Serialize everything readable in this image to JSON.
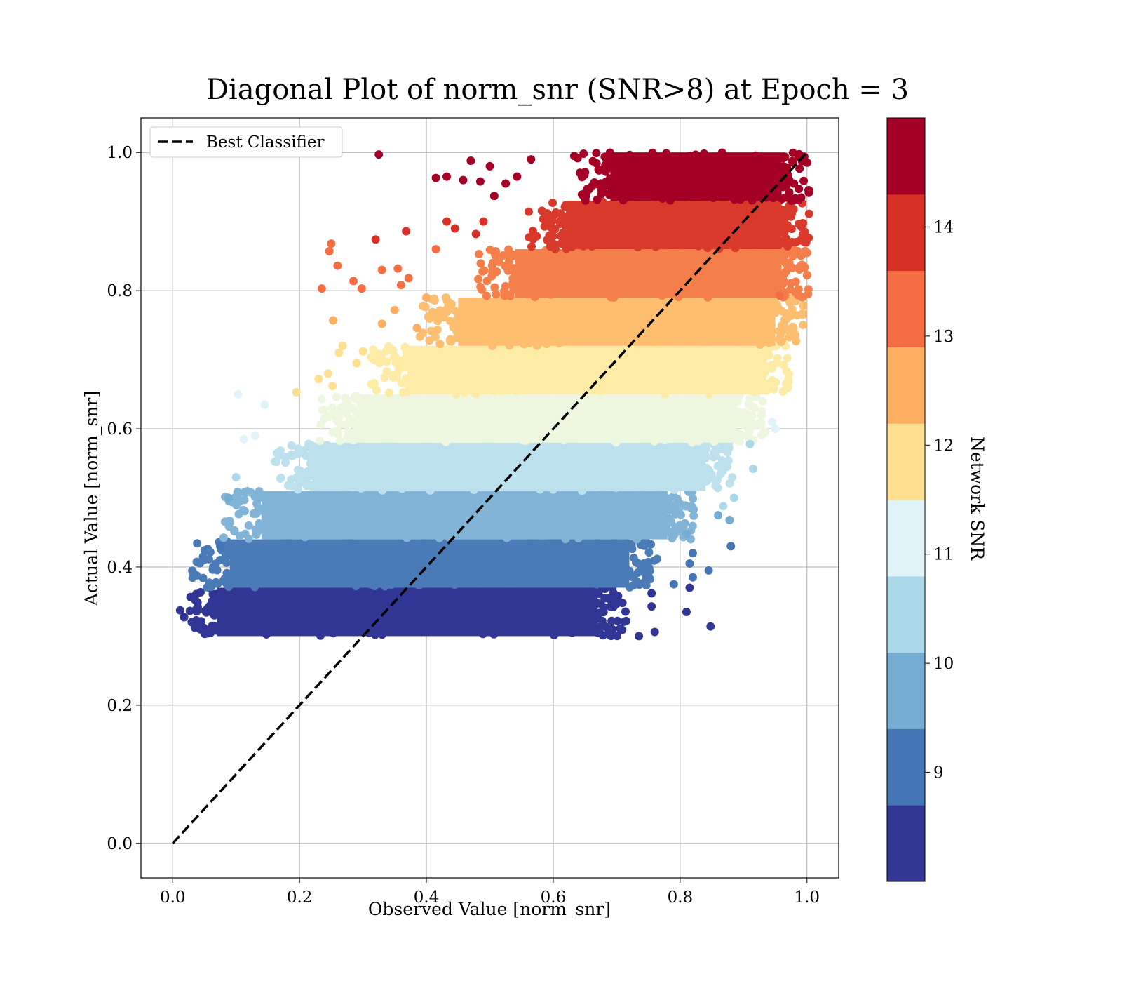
{
  "chart_data": {
    "type": "scatter",
    "title": "Diagonal Plot of norm_snr (SNR>8) at Epoch = 3",
    "xlabel": "Observed Value [norm_snr]",
    "ylabel": "Actual Value [norm_snr]",
    "xlim": [
      -0.05,
      1.05
    ],
    "ylim": [
      -0.05,
      1.05
    ],
    "xticks": [
      "0.0",
      "0.2",
      "0.4",
      "0.6",
      "0.8",
      "1.0"
    ],
    "yticks": [
      "0.0",
      "0.2",
      "0.4",
      "0.6",
      "0.8",
      "1.0"
    ],
    "grid": true,
    "legend": {
      "placement": "upper-left",
      "entries": [
        "Best Classifier"
      ]
    },
    "reference_line": {
      "name": "Best Classifier",
      "style": "dashed",
      "color": "#000000",
      "x": [
        0,
        1
      ],
      "y": [
        0,
        1
      ]
    },
    "colorbar": {
      "label": "Network SNR",
      "range": [
        8,
        15
      ],
      "ticks": [
        "9",
        "10",
        "11",
        "12",
        "13",
        "14"
      ],
      "colors": [
        "#313695",
        "#4575b4",
        "#74add1",
        "#abd9e9",
        "#e0f3f8",
        "#fee090",
        "#fdae61",
        "#f46d43",
        "#d73027",
        "#a50026"
      ]
    },
    "bands": [
      {
        "y": [
          0.3,
          0.37
        ],
        "x_core": [
          0.07,
          0.67
        ],
        "color": "#313695"
      },
      {
        "y": [
          0.37,
          0.44
        ],
        "x_core": [
          0.09,
          0.72
        ],
        "color": "#4a7bb7"
      },
      {
        "y": [
          0.44,
          0.51
        ],
        "x_core": [
          0.14,
          0.78
        ],
        "color": "#81b4d6"
      },
      {
        "y": [
          0.51,
          0.58
        ],
        "x_core": [
          0.22,
          0.84
        ],
        "color": "#bde1ec"
      },
      {
        "y": [
          0.58,
          0.65
        ],
        "x_core": [
          0.29,
          0.89
        ],
        "color": "#edf7df"
      },
      {
        "y": [
          0.65,
          0.72
        ],
        "x_core": [
          0.37,
          0.93
        ],
        "color": "#feeca6"
      },
      {
        "y": [
          0.72,
          0.79
        ],
        "x_core": [
          0.45,
          0.95
        ],
        "color": "#fdbe70"
      },
      {
        "y": [
          0.79,
          0.86
        ],
        "x_core": [
          0.54,
          0.96
        ],
        "color": "#f47f4a"
      },
      {
        "y": [
          0.86,
          0.93
        ],
        "x_core": [
          0.62,
          0.96
        ],
        "color": "#d9392b"
      },
      {
        "y": [
          0.93,
          1.0
        ],
        "x_core": [
          0.69,
          0.96
        ],
        "color": "#a50026"
      }
    ],
    "outliers": [
      {
        "x": 0.325,
        "y": 0.997,
        "c": "#a50026"
      },
      {
        "x": 0.47,
        "y": 0.988,
        "c": "#a50026"
      },
      {
        "x": 0.415,
        "y": 0.963,
        "c": "#a50026"
      },
      {
        "x": 0.432,
        "y": 0.965,
        "c": "#a50026"
      },
      {
        "x": 0.458,
        "y": 0.96,
        "c": "#a50026"
      },
      {
        "x": 0.5,
        "y": 0.98,
        "c": "#a50026"
      },
      {
        "x": 0.485,
        "y": 0.958,
        "c": "#a50026"
      },
      {
        "x": 0.507,
        "y": 0.937,
        "c": "#a50026"
      },
      {
        "x": 0.543,
        "y": 0.965,
        "c": "#a50026"
      },
      {
        "x": 0.565,
        "y": 0.99,
        "c": "#a50026"
      },
      {
        "x": 0.525,
        "y": 0.955,
        "c": "#a50026"
      },
      {
        "x": 0.32,
        "y": 0.874,
        "c": "#d73027"
      },
      {
        "x": 0.368,
        "y": 0.886,
        "c": "#d73027"
      },
      {
        "x": 0.432,
        "y": 0.9,
        "c": "#d73027"
      },
      {
        "x": 0.445,
        "y": 0.89,
        "c": "#d73027"
      },
      {
        "x": 0.478,
        "y": 0.882,
        "c": "#d73027"
      },
      {
        "x": 0.49,
        "y": 0.9,
        "c": "#d73027"
      },
      {
        "x": 0.25,
        "y": 0.868,
        "c": "#f46d43"
      },
      {
        "x": 0.247,
        "y": 0.857,
        "c": "#f46d43"
      },
      {
        "x": 0.26,
        "y": 0.836,
        "c": "#f46d43"
      },
      {
        "x": 0.33,
        "y": 0.83,
        "c": "#f46d43"
      },
      {
        "x": 0.355,
        "y": 0.832,
        "c": "#f46d43"
      },
      {
        "x": 0.372,
        "y": 0.818,
        "c": "#f46d43"
      },
      {
        "x": 0.285,
        "y": 0.814,
        "c": "#f46d43"
      },
      {
        "x": 0.235,
        "y": 0.803,
        "c": "#f46d43"
      },
      {
        "x": 0.298,
        "y": 0.803,
        "c": "#f46d43"
      },
      {
        "x": 0.36,
        "y": 0.808,
        "c": "#f46d43"
      },
      {
        "x": 0.415,
        "y": 0.86,
        "c": "#f46d43"
      },
      {
        "x": 0.957,
        "y": 0.793,
        "c": "#f46d43"
      },
      {
        "x": 0.253,
        "y": 0.757,
        "c": "#fdae61"
      },
      {
        "x": 0.33,
        "y": 0.752,
        "c": "#fdae61"
      },
      {
        "x": 0.35,
        "y": 0.772,
        "c": "#fdae61"
      },
      {
        "x": 0.385,
        "y": 0.746,
        "c": "#fdae61"
      },
      {
        "x": 0.4,
        "y": 0.79,
        "c": "#fdae61"
      },
      {
        "x": 0.268,
        "y": 0.72,
        "c": "#fee090"
      },
      {
        "x": 0.262,
        "y": 0.71,
        "c": "#fee090"
      },
      {
        "x": 0.23,
        "y": 0.672,
        "c": "#fee090"
      },
      {
        "x": 0.245,
        "y": 0.68,
        "c": "#fee090"
      },
      {
        "x": 0.195,
        "y": 0.653,
        "c": "#fee090"
      },
      {
        "x": 0.252,
        "y": 0.662,
        "c": "#fee090"
      },
      {
        "x": 0.29,
        "y": 0.695,
        "c": "#fee090"
      },
      {
        "x": 0.3,
        "y": 0.712,
        "c": "#fee090"
      },
      {
        "x": 0.103,
        "y": 0.65,
        "c": "#e0f3f8"
      },
      {
        "x": 0.145,
        "y": 0.635,
        "c": "#e0f3f8"
      },
      {
        "x": 0.112,
        "y": 0.585,
        "c": "#e0f3f8"
      },
      {
        "x": 0.13,
        "y": 0.59,
        "c": "#e0f3f8"
      },
      {
        "x": 0.95,
        "y": 0.6,
        "c": "#e0f3f8"
      },
      {
        "x": 0.945,
        "y": 0.61,
        "c": "#e0f3f8"
      },
      {
        "x": 0.1,
        "y": 0.53,
        "c": "#abd9e9"
      },
      {
        "x": 0.915,
        "y": 0.542,
        "c": "#abd9e9"
      },
      {
        "x": 0.91,
        "y": 0.578,
        "c": "#abd9e9"
      },
      {
        "x": 0.885,
        "y": 0.5,
        "c": "#abd9e9"
      },
      {
        "x": 0.868,
        "y": 0.488,
        "c": "#abd9e9"
      },
      {
        "x": 0.088,
        "y": 0.5,
        "c": "#74add1"
      },
      {
        "x": 0.878,
        "y": 0.468,
        "c": "#74add1"
      },
      {
        "x": 0.86,
        "y": 0.475,
        "c": "#74add1"
      },
      {
        "x": 0.81,
        "y": 0.448,
        "c": "#74add1"
      },
      {
        "x": 0.88,
        "y": 0.43,
        "c": "#4575b4"
      },
      {
        "x": 0.82,
        "y": 0.42,
        "c": "#4575b4"
      },
      {
        "x": 0.815,
        "y": 0.405,
        "c": "#4575b4"
      },
      {
        "x": 0.845,
        "y": 0.395,
        "c": "#4575b4"
      },
      {
        "x": 0.82,
        "y": 0.385,
        "c": "#4575b4"
      },
      {
        "x": 0.79,
        "y": 0.375,
        "c": "#4575b4"
      },
      {
        "x": 0.075,
        "y": 0.43,
        "c": "#4575b4"
      },
      {
        "x": 0.06,
        "y": 0.305,
        "c": "#313695"
      },
      {
        "x": 0.815,
        "y": 0.37,
        "c": "#313695"
      },
      {
        "x": 0.81,
        "y": 0.335,
        "c": "#313695"
      },
      {
        "x": 0.848,
        "y": 0.314,
        "c": "#313695"
      },
      {
        "x": 0.76,
        "y": 0.306,
        "c": "#313695"
      },
      {
        "x": 0.735,
        "y": 0.3,
        "c": "#313695"
      },
      {
        "x": 0.755,
        "y": 0.362,
        "c": "#313695"
      },
      {
        "x": 0.755,
        "y": 0.343,
        "c": "#313695"
      },
      {
        "x": 0.715,
        "y": 0.322,
        "c": "#313695"
      },
      {
        "x": 0.69,
        "y": 0.31,
        "c": "#313695"
      }
    ]
  }
}
